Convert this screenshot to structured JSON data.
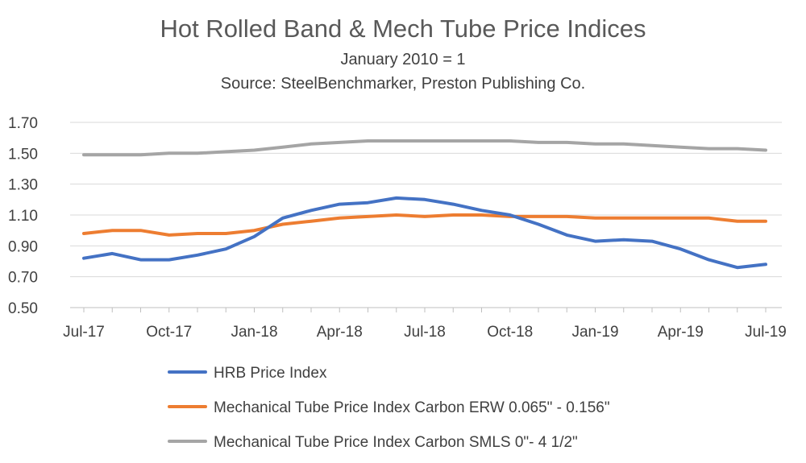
{
  "chart_data": {
    "type": "line",
    "title": "Hot Rolled Band & Mech Tube Price Indices",
    "subtitle": "January 2010 = 1",
    "source": "Source:  SteelBenchmarker, Preston Publishing Co.",
    "x": [
      "Jul-17",
      "Aug-17",
      "Sep-17",
      "Oct-17",
      "Nov-17",
      "Dec-17",
      "Jan-18",
      "Feb-18",
      "Mar-18",
      "Apr-18",
      "May-18",
      "Jun-18",
      "Jul-18",
      "Aug-18",
      "Sep-18",
      "Oct-18",
      "Nov-18",
      "Dec-18",
      "Jan-19",
      "Feb-19",
      "Mar-19",
      "Apr-19",
      "May-19",
      "Jun-19",
      "Jul-19"
    ],
    "x_tick_labels": [
      "Jul-17",
      "Oct-17",
      "Jan-18",
      "Apr-18",
      "Jul-18",
      "Oct-18",
      "Jan-19",
      "Apr-19",
      "Jul-19"
    ],
    "y_tick_labels": [
      "1.70",
      "1.50",
      "1.30",
      "1.10",
      "0.90",
      "0.70",
      "0.50"
    ],
    "ylim": [
      0.5,
      1.7
    ],
    "grid": true,
    "legend_position": "bottom",
    "series": [
      {
        "name": "HRB Price Index",
        "color": "#4472c4",
        "values": [
          0.82,
          0.85,
          0.81,
          0.81,
          0.84,
          0.88,
          0.96,
          1.08,
          1.13,
          1.17,
          1.18,
          1.21,
          1.2,
          1.17,
          1.13,
          1.1,
          1.04,
          0.97,
          0.93,
          0.94,
          0.93,
          0.88,
          0.81,
          0.76,
          0.78
        ]
      },
      {
        "name": "Mechanical Tube Price Index Carbon ERW 0.065\" - 0.156\"",
        "color": "#ed7d31",
        "values": [
          0.98,
          1.0,
          1.0,
          0.97,
          0.98,
          0.98,
          1.0,
          1.04,
          1.06,
          1.08,
          1.09,
          1.1,
          1.09,
          1.1,
          1.1,
          1.09,
          1.09,
          1.09,
          1.08,
          1.08,
          1.08,
          1.08,
          1.08,
          1.06,
          1.06
        ]
      },
      {
        "name": "Mechanical Tube Price Index Carbon SMLS 0\"- 4 1/2\"",
        "color": "#a5a5a5",
        "values": [
          1.49,
          1.49,
          1.49,
          1.5,
          1.5,
          1.51,
          1.52,
          1.54,
          1.56,
          1.57,
          1.58,
          1.58,
          1.58,
          1.58,
          1.58,
          1.58,
          1.57,
          1.57,
          1.56,
          1.56,
          1.55,
          1.54,
          1.53,
          1.53,
          1.52
        ]
      }
    ]
  }
}
